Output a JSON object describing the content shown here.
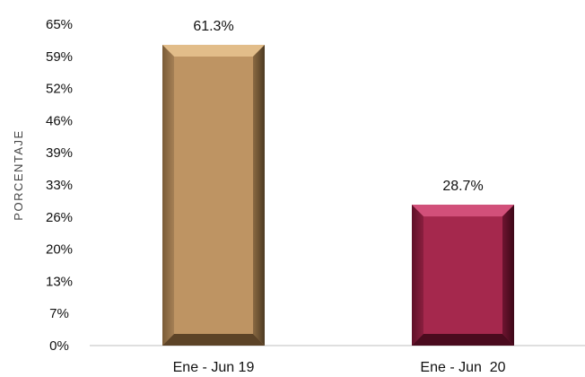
{
  "chart_data": {
    "type": "bar",
    "ylabel": "PORCENTAJE",
    "categories": [
      "Ene - Jun 19",
      "Ene - Jun  20"
    ],
    "values": [
      61.3,
      28.7
    ],
    "data_labels": [
      "61.3%",
      "28.7%"
    ],
    "y_ticks": [
      "0%",
      "7%",
      "13%",
      "20%",
      "26%",
      "33%",
      "39%",
      "46%",
      "52%",
      "59%",
      "65%"
    ],
    "ylim": [
      0,
      65.5
    ],
    "grid": false,
    "legend": "none",
    "colors": [
      "#BE9463",
      "#A5284D"
    ]
  }
}
